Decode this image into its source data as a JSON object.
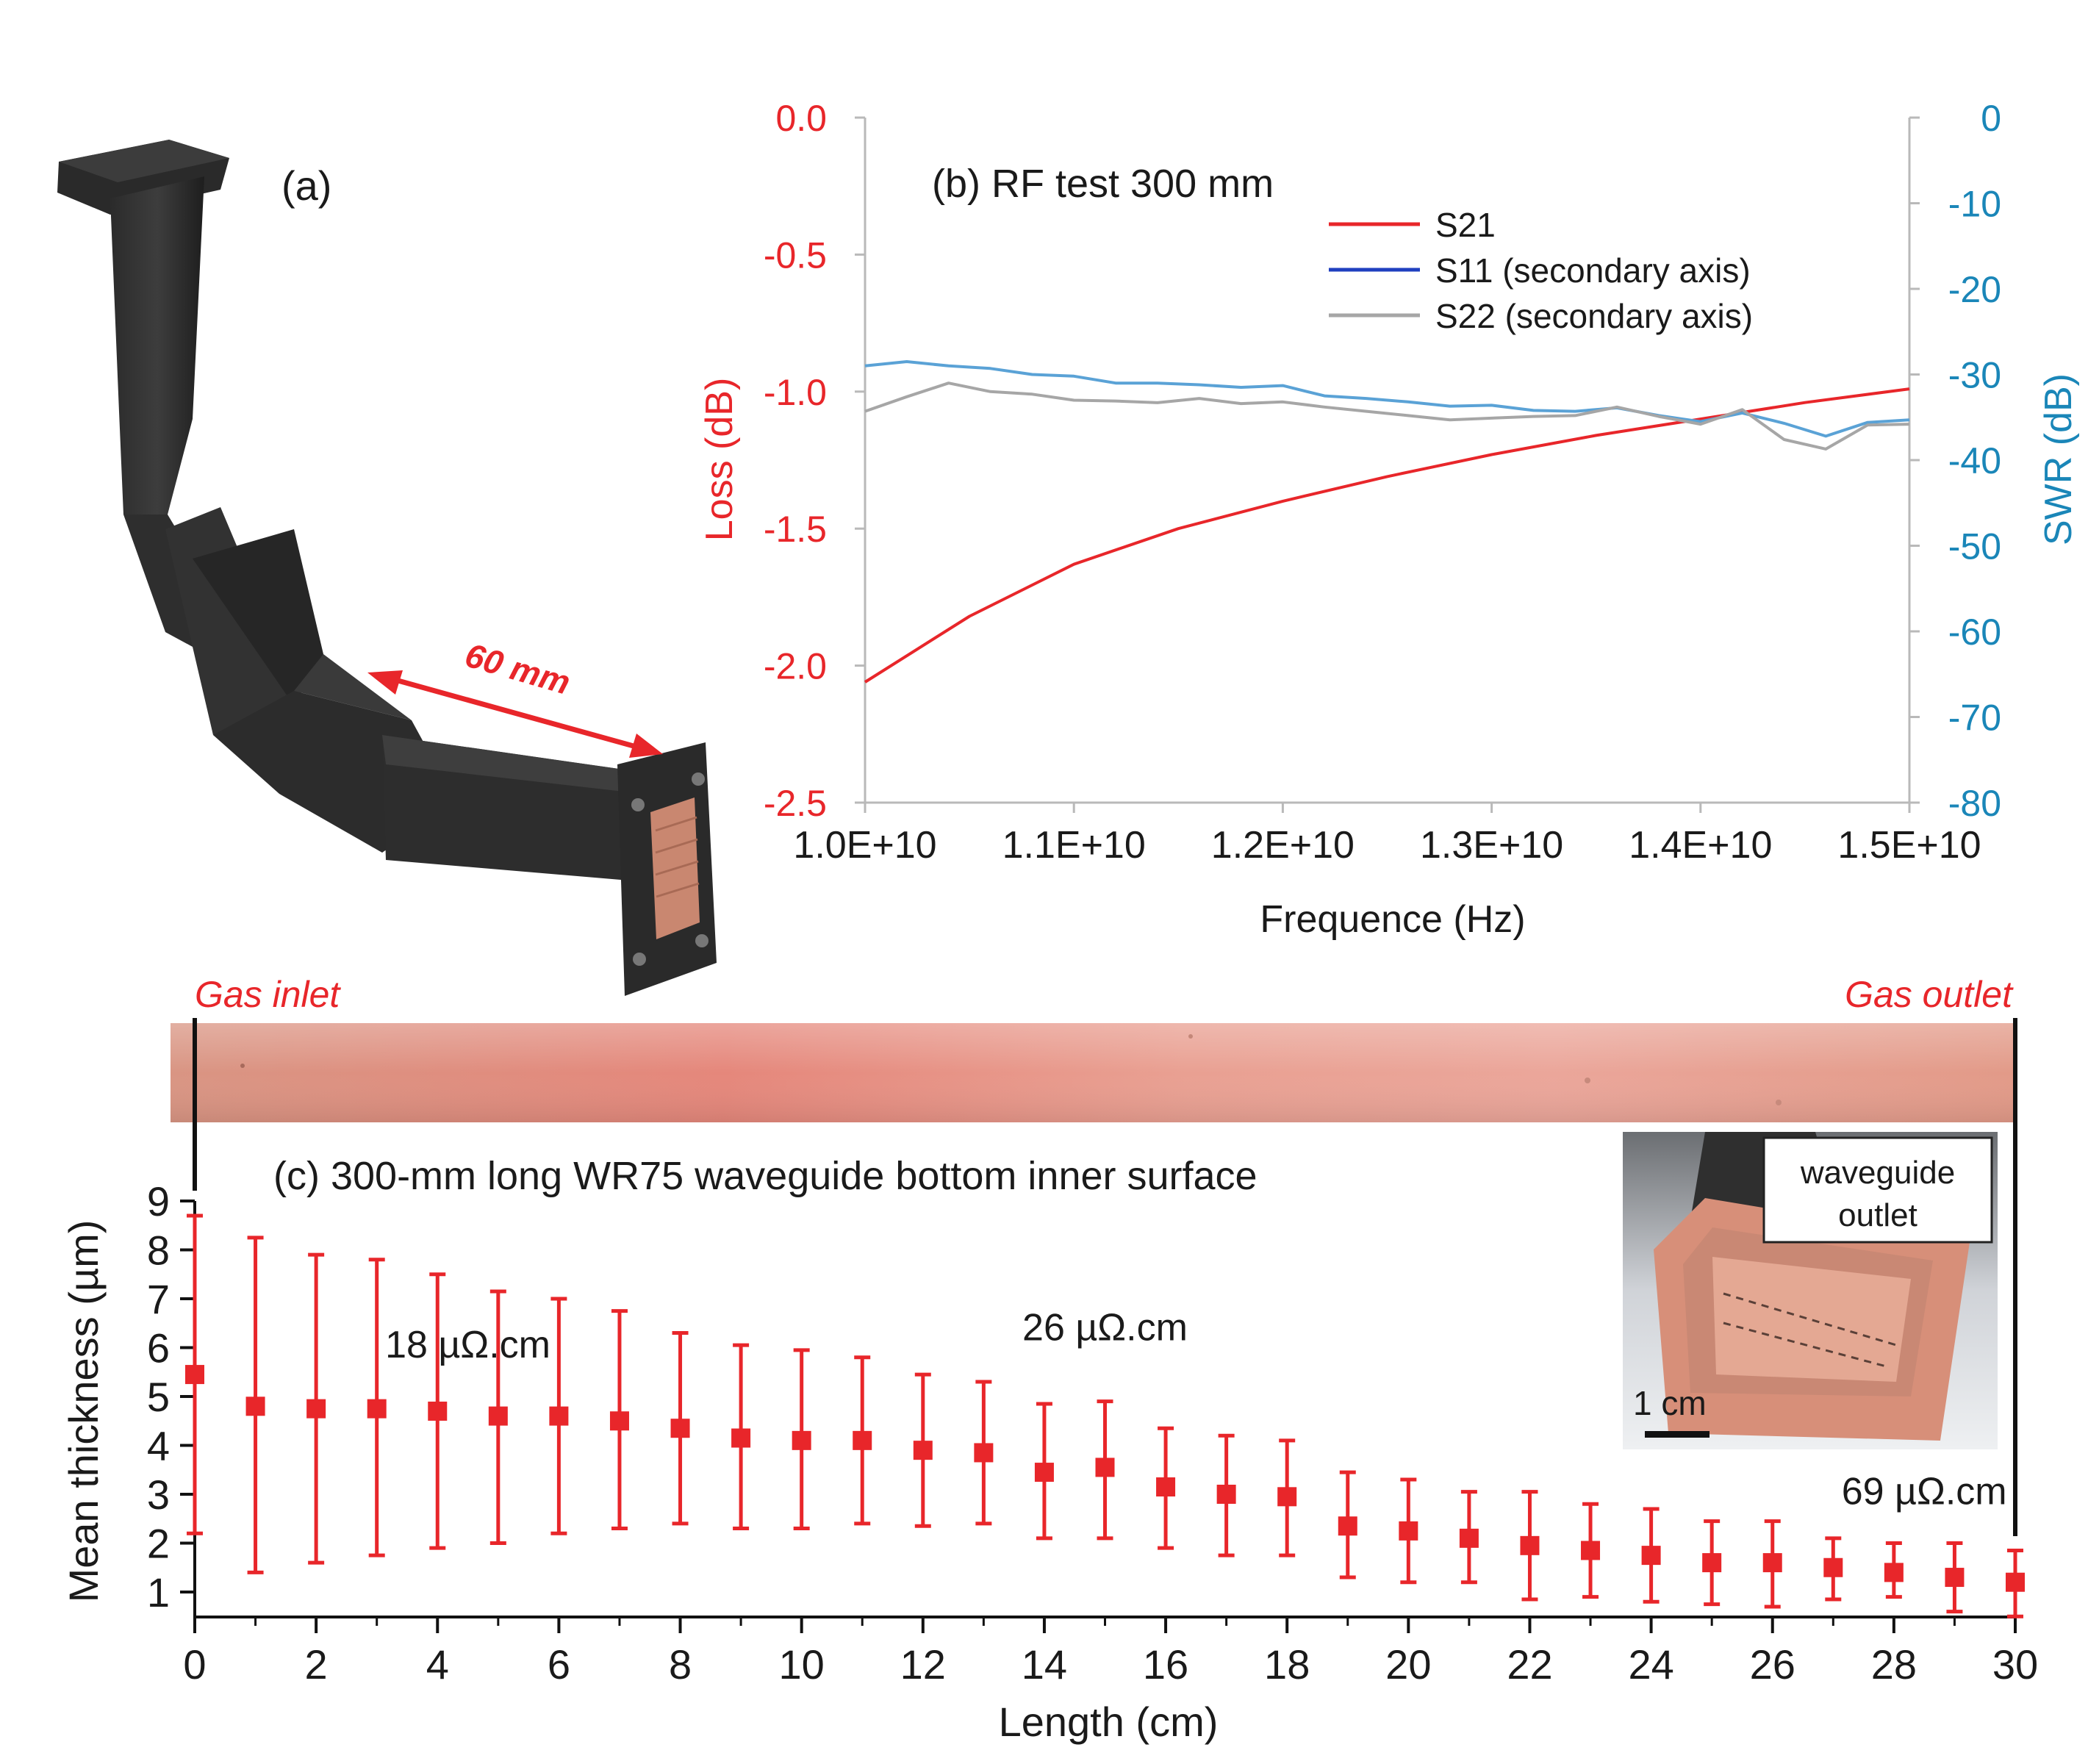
{
  "panel_a": {
    "label": "(a)",
    "dimension_label": "60 mm"
  },
  "strip": {
    "inlet_label": "Gas inlet",
    "outlet_label": "Gas outlet"
  },
  "inset": {
    "label_line1": "waveguide",
    "label_line2": "outlet",
    "scale_label": "1 cm"
  },
  "chart_data": [
    {
      "type": "line",
      "title": "(b) RF test 300 mm",
      "xlabel": "Frequence (Hz)",
      "ylabel": "Loss (dB)",
      "y2label": "SWR (dB)",
      "xlim": [
        10000000000.0,
        15000000000.0
      ],
      "ylim": [
        -2.5,
        0.0
      ],
      "y2lim": [
        -80,
        0
      ],
      "x_ticks": [
        10000000000.0,
        11000000000.0,
        12000000000.0,
        13000000000.0,
        14000000000.0,
        15000000000.0
      ],
      "x_tick_labels": [
        "1.0E+10",
        "1.1E+10",
        "1.2E+10",
        "1.3E+10",
        "1.4E+10",
        "1.5E+10"
      ],
      "y_ticks": [
        0.0,
        -0.5,
        -1.0,
        -1.5,
        -2.0,
        -2.5
      ],
      "y_tick_labels": [
        "0.0",
        "-0.5",
        "-1.0",
        "-1.5",
        "-2.0",
        "-2.5"
      ],
      "y2_ticks": [
        0,
        -10,
        -20,
        -30,
        -40,
        -50,
        -60,
        -70,
        -80
      ],
      "y2_tick_labels": [
        "0",
        "-10",
        "-20",
        "-30",
        "-40",
        "-50",
        "-60",
        "-70",
        "-80"
      ],
      "legend_position": "top-right",
      "grid": false,
      "colors": {
        "left_axis": "#e8262a",
        "right_axis": "#1a86b8",
        "axis": "#b9b9b9"
      },
      "series": [
        {
          "name": "S21",
          "axis": "left",
          "color": "#e8262a",
          "legend_color": "#e8262a",
          "x": [
            10000000000.0,
            10500000000.0,
            11000000000.0,
            11500000000.0,
            12000000000.0,
            12500000000.0,
            13000000000.0,
            13500000000.0,
            14000000000.0,
            14500000000.0,
            15000000000.0
          ],
          "y": [
            -2.06,
            -1.82,
            -1.63,
            -1.5,
            -1.4,
            -1.31,
            -1.23,
            -1.16,
            -1.1,
            -1.04,
            -0.99
          ]
        },
        {
          "name": "S11 (secondary axis)",
          "axis": "right",
          "color": "#5aa2d6",
          "legend_color": "#1f3fbf",
          "x": [
            10000000000.0,
            10200000000.0,
            10400000000.0,
            10600000000.0,
            10800000000.0,
            11000000000.0,
            11200000000.0,
            11400000000.0,
            11600000000.0,
            11800000000.0,
            12000000000.0,
            12200000000.0,
            12400000000.0,
            12600000000.0,
            12800000000.0,
            13000000000.0,
            13200000000.0,
            13400000000.0,
            13600000000.0,
            13800000000.0,
            14000000000.0,
            14200000000.0,
            14400000000.0,
            14600000000.0,
            14800000000.0,
            15000000000.0
          ],
          "y": [
            -29,
            -28.5,
            -29,
            -29.3,
            -30,
            -30.2,
            -31,
            -31,
            -31.2,
            -31.5,
            -31.3,
            -32.5,
            -32.8,
            -33.2,
            -33.7,
            -33.6,
            -34.2,
            -34.3,
            -33.9,
            -34.8,
            -35.5,
            -34.5,
            -35.7,
            -37.2,
            -35.6,
            -35.3
          ]
        },
        {
          "name": "S22 (secondary axis)",
          "axis": "right",
          "color": "#a6a6a6",
          "legend_color": "#a6a6a6",
          "x": [
            10000000000.0,
            10200000000.0,
            10400000000.0,
            10600000000.0,
            10800000000.0,
            11000000000.0,
            11200000000.0,
            11400000000.0,
            11600000000.0,
            11800000000.0,
            12000000000.0,
            12200000000.0,
            12400000000.0,
            12600000000.0,
            12800000000.0,
            13000000000.0,
            13200000000.0,
            13400000000.0,
            13600000000.0,
            13800000000.0,
            14000000000.0,
            14200000000.0,
            14400000000.0,
            14600000000.0,
            14800000000.0,
            15000000000.0
          ],
          "y": [
            -34.3,
            -32.6,
            -31,
            -32,
            -32.3,
            -33,
            -33.1,
            -33.3,
            -32.8,
            -33.4,
            -33.2,
            -33.8,
            -34.3,
            -34.8,
            -35.3,
            -35.1,
            -34.9,
            -34.8,
            -33.8,
            -34.9,
            -35.8,
            -34.1,
            -37.6,
            -38.7,
            -35.9,
            -35.8
          ]
        }
      ]
    },
    {
      "type": "scatter",
      "title": "(c) 300-mm long WR75 waveguide bottom inner surface",
      "xlabel": "Length (cm)",
      "ylabel": "Mean thickness (µm)",
      "xlim": [
        0,
        30
      ],
      "ylim": [
        0.5,
        9
      ],
      "x_ticks": [
        0,
        2,
        4,
        6,
        8,
        10,
        12,
        14,
        16,
        18,
        20,
        22,
        24,
        26,
        28,
        30
      ],
      "x_tick_labels": [
        "0",
        "2",
        "4",
        "6",
        "8",
        "10",
        "12",
        "14",
        "16",
        "18",
        "20",
        "22",
        "24",
        "26",
        "28",
        "30"
      ],
      "y_ticks": [
        1,
        2,
        3,
        4,
        5,
        6,
        7,
        8,
        9
      ],
      "y_tick_labels": [
        "1",
        "2",
        "3",
        "4",
        "5",
        "6",
        "7",
        "8",
        "9"
      ],
      "grid": false,
      "series": [
        {
          "name": "",
          "color": "#e8262a",
          "error_bars": true,
          "x": [
            0,
            1,
            2,
            3,
            4,
            5,
            6,
            7,
            8,
            9,
            10,
            11,
            12,
            13,
            14,
            15,
            16,
            17,
            18,
            19,
            20,
            21,
            22,
            23,
            24,
            25,
            26,
            27,
            28,
            29,
            30
          ],
          "y": [
            5.45,
            4.8,
            4.75,
            4.75,
            4.7,
            4.6,
            4.6,
            4.5,
            4.35,
            4.15,
            4.1,
            4.1,
            3.9,
            3.85,
            3.45,
            3.55,
            3.15,
            3.0,
            2.95,
            2.35,
            2.25,
            2.1,
            1.95,
            1.85,
            1.75,
            1.6,
            1.6,
            1.5,
            1.4,
            1.3,
            1.2
          ],
          "y_low": [
            2.2,
            1.4,
            1.6,
            1.75,
            1.9,
            2.0,
            2.2,
            2.3,
            2.4,
            2.3,
            2.3,
            2.4,
            2.35,
            2.4,
            2.1,
            2.1,
            1.9,
            1.75,
            1.75,
            1.3,
            1.2,
            1.2,
            0.85,
            0.9,
            0.8,
            0.75,
            0.7,
            0.85,
            0.9,
            0.6,
            0.5
          ],
          "y_high": [
            8.7,
            8.25,
            7.9,
            7.8,
            7.5,
            7.15,
            7.0,
            6.75,
            6.3,
            6.05,
            5.95,
            5.8,
            5.45,
            5.3,
            4.85,
            4.9,
            4.35,
            4.2,
            4.1,
            3.45,
            3.3,
            3.05,
            3.05,
            2.8,
            2.7,
            2.45,
            2.45,
            2.1,
            2.0,
            2.0,
            1.85
          ]
        }
      ],
      "annotations": [
        {
          "text": "18 µΩ.cm",
          "x": 4.5,
          "y": 5.8
        },
        {
          "text": "26 µΩ.cm",
          "x": 15,
          "y": 6.15
        },
        {
          "text": "69 µΩ.cm",
          "x": 28.5,
          "y": 2.8
        }
      ]
    }
  ]
}
